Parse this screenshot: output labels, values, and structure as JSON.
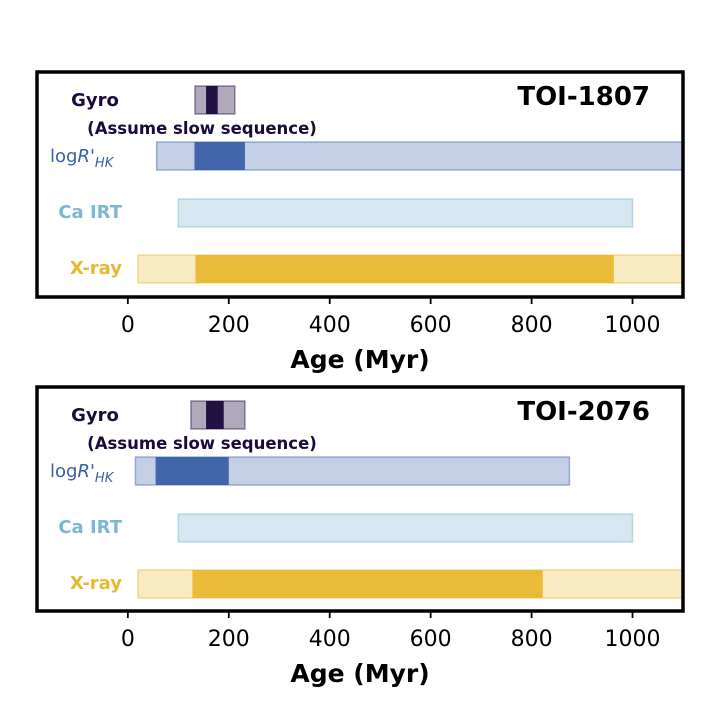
{
  "chart_data": [
    {
      "type": "range-bar",
      "title": "TOI-1807",
      "xlabel": "Age (Myr)",
      "xlim": [
        -180,
        1100
      ],
      "xticks": [
        0,
        200,
        400,
        600,
        800,
        1000
      ],
      "rows": [
        {
          "name": "gyro",
          "label": "Gyro",
          "sublabel": "(Assume slow sequence)",
          "color": "#1a0a3c",
          "outer": [
            133,
            212
          ],
          "inner": [
            155,
            178
          ]
        },
        {
          "name": "logrhk",
          "label": "logR'HK",
          "color": "#3a5fa8",
          "outer": [
            57,
            1100
          ],
          "inner": [
            132,
            232
          ]
        },
        {
          "name": "ca-irt",
          "label": "Ca IRT",
          "color": "#7bb8cf",
          "outer": [
            100,
            1000
          ],
          "inner": null
        },
        {
          "name": "xray",
          "label": "X-ray",
          "color": "#e9b832",
          "outer": [
            20,
            1100
          ],
          "inner": [
            134,
            963
          ]
        }
      ]
    },
    {
      "type": "range-bar",
      "title": "TOI-2076",
      "xlabel": "Age (Myr)",
      "xlim": [
        -180,
        1100
      ],
      "xticks": [
        0,
        200,
        400,
        600,
        800,
        1000
      ],
      "rows": [
        {
          "name": "gyro",
          "label": "Gyro",
          "sublabel": "(Assume slow sequence)",
          "color": "#1a0a3c",
          "outer": [
            125,
            232
          ],
          "inner": [
            155,
            190
          ]
        },
        {
          "name": "logrhk",
          "label": "logR'HK",
          "color": "#3a5fa8",
          "outer": [
            15,
            875
          ],
          "inner": [
            55,
            200
          ]
        },
        {
          "name": "ca-irt",
          "label": "Ca IRT",
          "color": "#7bb8cf",
          "outer": [
            100,
            1000
          ],
          "inner": null
        },
        {
          "name": "xray",
          "label": "X-ray",
          "color": "#e9b832",
          "outer": [
            20,
            1100
          ],
          "inner": [
            128,
            822
          ]
        }
      ]
    }
  ]
}
